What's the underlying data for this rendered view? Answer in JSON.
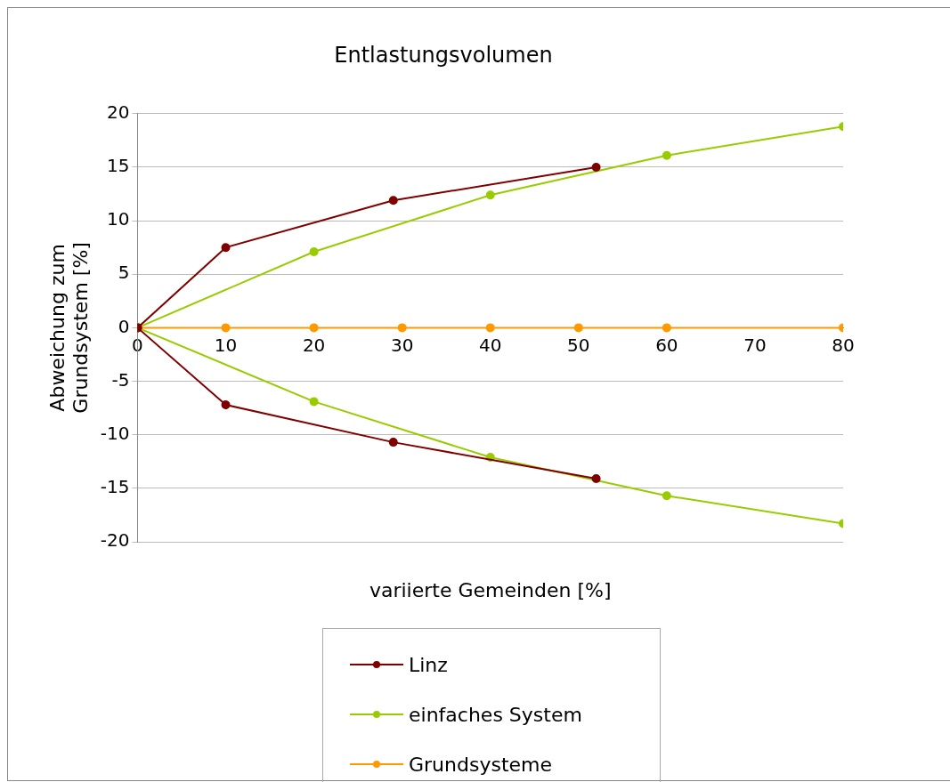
{
  "chart_data": {
    "type": "line",
    "title": "Entlastungsvolumen",
    "xlabel": "variierte Gemeinden [%]",
    "ylabel": "Abweichung zum Grundsystem [%]",
    "xlim": [
      0,
      80
    ],
    "xticks": [
      0,
      10,
      20,
      30,
      40,
      50,
      60,
      70,
      80
    ],
    "ylim": [
      -20,
      20
    ],
    "yticks": [
      -20,
      -15,
      -10,
      -5,
      0,
      5,
      10,
      15,
      20
    ],
    "grid": "y",
    "legend": "bottom",
    "marker": "circle",
    "line_style": "solid",
    "series": [
      {
        "name": "Linz",
        "color": "#800000",
        "x": [
          0,
          10,
          29,
          52
        ],
        "values": [
          0,
          7.5,
          11.9,
          15.0
        ]
      },
      {
        "color": "#800000",
        "x": [
          0,
          10,
          29,
          52
        ],
        "values": [
          0,
          -7.2,
          -10.7,
          -14.1
        ]
      },
      {
        "name": "einfaches System",
        "color": "#99cc00",
        "x": [
          0,
          20,
          40,
          60,
          80
        ],
        "values": [
          0,
          7.1,
          12.4,
          16.1,
          18.8
        ]
      },
      {
        "color": "#99cc00",
        "x": [
          0,
          20,
          40,
          60,
          80
        ],
        "values": [
          0,
          -6.9,
          -12.1,
          -15.7,
          -18.3
        ]
      },
      {
        "name": "Grundsysteme",
        "color": "#ff9900",
        "x": [
          0,
          10,
          20,
          30,
          40,
          50,
          60,
          80
        ],
        "values": [
          0,
          0,
          0,
          0,
          0,
          0,
          0,
          0
        ]
      }
    ]
  }
}
